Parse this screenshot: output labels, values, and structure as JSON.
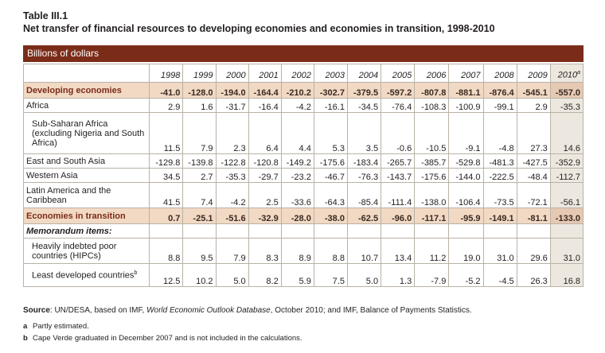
{
  "table_number": "Table III.1",
  "title": "Net transfer of financial resources to developing economies and economies in transition, 1998-2010",
  "unit_label": "Billions of dollars",
  "years": [
    "1998",
    "1999",
    "2000",
    "2001",
    "2002",
    "2003",
    "2004",
    "2005",
    "2006",
    "2007",
    "2008",
    "2009",
    "2010"
  ],
  "year_2010_note": "a",
  "rows": [
    {
      "label": "Developing economies",
      "values": [
        "-41.0",
        "-128.0",
        "-194.0",
        "-164.4",
        "-210.2",
        "-302.7",
        "-379.5",
        "-597.2",
        "-807.8",
        "-881.1",
        "-876.4",
        "-545.1",
        "-557.0"
      ]
    },
    {
      "label": "Africa",
      "values": [
        "2.9",
        "1.6",
        "-31.7",
        "-16.4",
        "-4.2",
        "-16.1",
        "-34.5",
        "-76.4",
        "-108.3",
        "-100.9",
        "-99.1",
        "2.9",
        "-35.3"
      ]
    },
    {
      "label": "Sub-Saharan Africa (excluding Nigeria and South Africa)",
      "values": [
        "11.5",
        "7.9",
        "2.3",
        "6.4",
        "4.4",
        "5.3",
        "3.5",
        "-0.6",
        "-10.5",
        "-9.1",
        "-4.8",
        "27.3",
        "14.6"
      ]
    },
    {
      "label": "East and South Asia",
      "values": [
        "-129.8",
        "-139.8",
        "-122.8",
        "-120.8",
        "-149.2",
        "-175.6",
        "-183.4",
        "-265.7",
        "-385.7",
        "-529.8",
        "-481.3",
        "-427.5",
        "-352.9"
      ]
    },
    {
      "label": "Western Asia",
      "values": [
        "34.5",
        "2.7",
        "-35.3",
        "-29.7",
        "-23.2",
        "-46.7",
        "-76.3",
        "-143.7",
        "-175.6",
        "-144.0",
        "-222.5",
        "-48.4",
        "-112.7"
      ]
    },
    {
      "label": "Latin America and the Caribbean",
      "values": [
        "41.5",
        "7.4",
        "-4.2",
        "2.5",
        "-33.6",
        "-64.3",
        "-85.4",
        "-111.4",
        "-138.0",
        "-106.4",
        "-73.5",
        "-72.1",
        "-56.1"
      ]
    },
    {
      "label": "Economies in transition",
      "values": [
        "0.7",
        "-25.1",
        "-51.6",
        "-32.9",
        "-28.0",
        "-38.0",
        "-62.5",
        "-96.0",
        "-117.1",
        "-95.9",
        "-149.1",
        "-81.1",
        "-133.0"
      ]
    },
    {
      "label": "Memorandum items:"
    },
    {
      "label": "Heavily indebted poor countries (HIPCs)",
      "values": [
        "8.8",
        "9.5",
        "7.9",
        "8.3",
        "8.9",
        "8.8",
        "10.7",
        "13.4",
        "11.2",
        "19.0",
        "31.0",
        "29.6",
        "31.0"
      ]
    },
    {
      "label": "Least developed countries",
      "note": "b",
      "values": [
        "12.5",
        "10.2",
        "5.0",
        "8.2",
        "5.9",
        "7.5",
        "5.0",
        "1.3",
        "-7.9",
        "-5.2",
        "-4.5",
        "26.3",
        "16.8"
      ]
    }
  ],
  "source": {
    "label": "Source",
    "text_before": ":  UN/DESA, based on IMF, ",
    "italic": "World Economic Outlook Database",
    "text_after": ", October 2010; and IMF, Balance of Payments Statistics."
  },
  "notes": [
    {
      "marker": "a",
      "text": "Partly estimated."
    },
    {
      "marker": "b",
      "text": "Cape Verde graduated in December 2007 and is not included in the calculations."
    }
  ],
  "colors": {
    "header_bar": "#7b2c18",
    "aggregate_row": "#f1d9c4",
    "col_2010": "#ede8df"
  }
}
